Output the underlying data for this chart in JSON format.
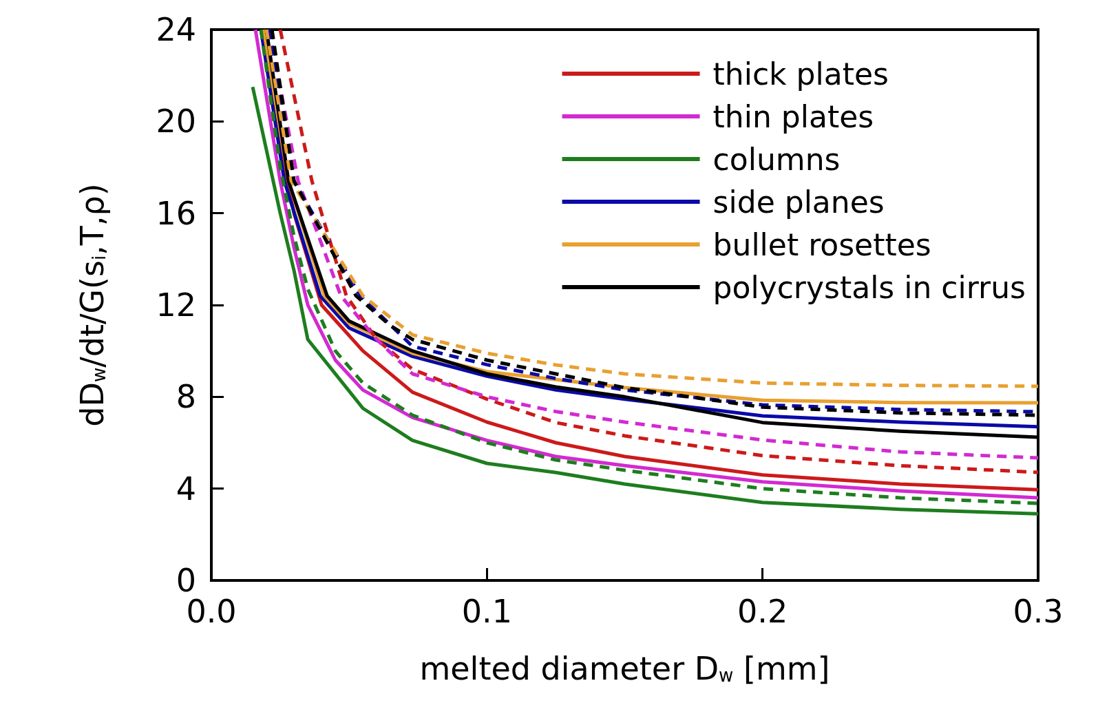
{
  "chart_data": {
    "type": "line",
    "xlabel": "melted diameter D$_{w}$ [mm]",
    "ylabel": "dD$_{w}$/dt/G(s$_{i}$,T,ρ)",
    "xlim": [
      0,
      0.3
    ],
    "xticks": [
      {
        "value": 0,
        "label": "0.0"
      },
      0.1,
      0.2,
      0.3
    ],
    "ylim": [
      0,
      24
    ],
    "yticks": [
      0,
      4,
      8,
      12,
      16,
      20,
      24
    ],
    "grid": false,
    "legend": "top right",
    "marker": "none",
    "series": [
      {
        "name": "thick plates",
        "color": "#cc1a1a",
        "line_style": "solid",
        "x": [
          0.019,
          0.025,
          0.03,
          0.04,
          0.055,
          0.073,
          0.1,
          0.125,
          0.15,
          0.2,
          0.25,
          0.3
        ],
        "values": [
          24,
          19,
          16,
          12,
          10,
          8.2,
          6.9,
          6,
          5.4,
          4.6,
          4.2,
          3.95
        ]
      },
      {
        "name": "thin plates",
        "color": "#d22ad2",
        "line_style": "solid",
        "x": [
          0.016,
          0.025,
          0.03,
          0.035,
          0.045,
          0.055,
          0.073,
          0.1,
          0.125,
          0.15,
          0.2,
          0.25,
          0.3
        ],
        "values": [
          24,
          17.4,
          14.5,
          12,
          9.6,
          8.3,
          7.1,
          6.1,
          5.4,
          5,
          4.3,
          3.9,
          3.6
        ]
      },
      {
        "name": "columns",
        "color": "#1e7d1e",
        "line_style": "solid",
        "x": [
          0.015,
          0.025,
          0.03,
          0.035,
          0.055,
          0.073,
          0.1,
          0.125,
          0.15,
          0.2,
          0.25,
          0.3
        ],
        "values": [
          21.5,
          16,
          13.5,
          10.5,
          7.5,
          6.1,
          5.1,
          4.7,
          4.2,
          3.4,
          3.1,
          2.9
        ]
      },
      {
        "name": "side planes",
        "color": "#0a0aa8",
        "line_style": "solid",
        "x": [
          0.018,
          0.0265,
          0.0395,
          0.05,
          0.073,
          0.1,
          0.125,
          0.15,
          0.2,
          0.25,
          0.3
        ],
        "values": [
          24,
          17.4,
          12.4,
          11,
          9.76,
          8.9,
          8.3,
          7.9,
          7.17,
          6.9,
          6.7
        ]
      },
      {
        "name": "bullet rosettes",
        "color": "#e8a030",
        "line_style": "solid",
        "x": [
          0.019,
          0.028,
          0.041,
          0.05,
          0.073,
          0.1,
          0.125,
          0.15,
          0.2,
          0.25,
          0.3
        ],
        "values": [
          24,
          17.4,
          12.4,
          11.2,
          9.9,
          9.1,
          8.75,
          8.4,
          7.85,
          7.75,
          7.74
        ]
      },
      {
        "name": "polycrystals in cirrus",
        "color": "#000000",
        "line_style": "solid",
        "x": [
          0.02,
          0.028,
          0.042,
          0.05,
          0.073,
          0.1,
          0.125,
          0.15,
          0.2,
          0.25,
          0.3
        ],
        "values": [
          24,
          17.4,
          12.4,
          11.3,
          10,
          9,
          8.43,
          8,
          6.88,
          6.5,
          6.24
        ]
      },
      {
        "color": "#cc1a1a",
        "line_style": "dashed",
        "x": [
          0.025,
          0.0365,
          0.049,
          0.06,
          0.073,
          0.1,
          0.125,
          0.15,
          0.2,
          0.25,
          0.3
        ],
        "values": [
          24,
          17.4,
          12.4,
          10.5,
          9.2,
          7.9,
          6.88,
          6.3,
          5.44,
          5,
          4.71
        ]
      },
      {
        "color": "#d22ad2",
        "line_style": "dashed",
        "x": [
          0.021,
          0.0315,
          0.047,
          0.06,
          0.073,
          0.1,
          0.125,
          0.15,
          0.2,
          0.25,
          0.3
        ],
        "values": [
          24,
          17.4,
          12.4,
          10.5,
          9,
          8,
          7.36,
          6.9,
          6.12,
          5.6,
          5.34
        ]
      },
      {
        "color": "#1e7d1e",
        "line_style": "dashed",
        "x": [
          0.018,
          0.025,
          0.03,
          0.035,
          0.045,
          0.055,
          0.073,
          0.1,
          0.125,
          0.15,
          0.2,
          0.25,
          0.3
        ],
        "values": [
          24,
          18,
          15,
          12.7,
          10,
          8.6,
          7.2,
          6,
          5.25,
          4.8,
          4,
          3.6,
          3.36
        ]
      },
      {
        "color": "#0a0aa8",
        "line_style": "dashed",
        "x": [
          0.021,
          0.03,
          0.054,
          0.073,
          0.1,
          0.125,
          0.15,
          0.2,
          0.25,
          0.3
        ],
        "values": [
          24,
          17.4,
          12.4,
          10.2,
          9.4,
          8.8,
          8.3,
          7.65,
          7.45,
          7.35
        ]
      },
      {
        "color": "#e8a030",
        "line_style": "dashed",
        "x": [
          0.02,
          0.029,
          0.055,
          0.073,
          0.1,
          0.125,
          0.15,
          0.2,
          0.25,
          0.3
        ],
        "values": [
          24,
          17.4,
          12.4,
          10.7,
          9.9,
          9.39,
          9,
          8.6,
          8.5,
          8.46
        ]
      },
      {
        "color": "#000000",
        "line_style": "dashed",
        "x": [
          0.022,
          0.03,
          0.0525,
          0.065,
          0.073,
          0.1,
          0.125,
          0.15,
          0.2,
          0.25,
          0.3
        ],
        "values": [
          24,
          17.4,
          12.4,
          11.1,
          10.5,
          9.6,
          9,
          8.4,
          7.55,
          7.3,
          7.2
        ]
      }
    ]
  }
}
